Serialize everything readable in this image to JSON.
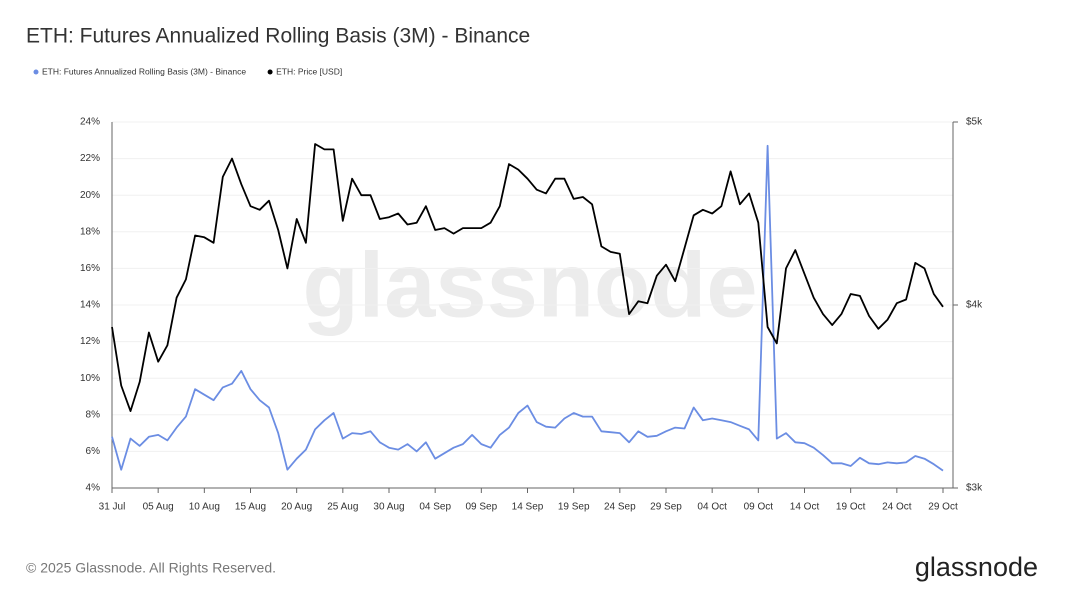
{
  "chart_data": {
    "type": "line",
    "title": "ETH: Futures Annualized Rolling Basis (3M) - Binance",
    "watermark": "glassnode",
    "categories": [
      "31 Jul",
      null,
      null,
      null,
      null,
      "05 Aug",
      null,
      null,
      null,
      null,
      "10 Aug",
      null,
      null,
      null,
      null,
      "15 Aug",
      null,
      null,
      null,
      null,
      "20 Aug",
      null,
      null,
      null,
      null,
      "25 Aug",
      null,
      null,
      null,
      null,
      "30 Aug",
      null,
      null,
      null,
      null,
      "04 Sep",
      null,
      null,
      null,
      null,
      "09 Sep",
      null,
      null,
      null,
      null,
      "14 Sep",
      null,
      null,
      null,
      null,
      "19 Sep",
      null,
      null,
      null,
      null,
      "24 Sep",
      null,
      null,
      null,
      null,
      "29 Sep",
      null,
      null,
      null,
      null,
      "04 Oct",
      null,
      null,
      null,
      null,
      "09 Oct",
      null,
      null,
      null,
      null,
      "14 Oct",
      null,
      null,
      null,
      null,
      "19 Oct",
      null,
      null,
      null,
      null,
      "24 Oct",
      null,
      null,
      null,
      null,
      "29 Oct"
    ],
    "series": [
      {
        "name": "ETH: Futures Annualized Rolling Basis (3M) - Binance",
        "color": "#6b8de3",
        "axis": "y",
        "values": [
          6.8,
          5.0,
          6.7,
          6.3,
          6.8,
          6.9,
          6.6,
          7.3,
          7.9,
          9.4,
          9.1,
          8.8,
          9.5,
          9.7,
          10.4,
          9.4,
          8.8,
          8.4,
          7.0,
          5.0,
          5.6,
          6.1,
          7.2,
          7.7,
          8.1,
          6.7,
          7.0,
          6.95,
          7.1,
          6.5,
          6.2,
          6.1,
          6.4,
          6.0,
          6.5,
          5.6,
          5.9,
          6.2,
          6.4,
          6.9,
          6.4,
          6.2,
          6.9,
          7.3,
          8.1,
          8.5,
          7.6,
          7.35,
          7.3,
          7.8,
          8.1,
          7.9,
          7.9,
          7.1,
          7.05,
          7.0,
          6.5,
          7.1,
          6.8,
          6.85,
          7.1,
          7.3,
          7.25,
          8.4,
          7.7,
          7.8,
          7.7,
          7.6,
          7.4,
          7.2,
          6.6,
          22.7,
          6.7,
          7.0,
          6.5,
          6.45,
          6.2,
          5.8,
          5.35,
          5.35,
          5.2,
          5.65,
          5.35,
          5.3,
          5.4,
          5.35,
          5.4,
          5.75,
          5.6,
          5.3,
          4.95
        ]
      },
      {
        "name": "ETH: Price [USD]",
        "color": "#000000",
        "axis": "y2",
        "values": [
          3880,
          3560,
          3420,
          3580,
          3850,
          3690,
          3780,
          4040,
          4140,
          4380,
          4370,
          4340,
          4700,
          4800,
          4660,
          4540,
          4520,
          4570,
          4410,
          4200,
          4470,
          4340,
          4880,
          4850,
          4850,
          4460,
          4690,
          4600,
          4600,
          4470,
          4480,
          4500,
          4440,
          4450,
          4540,
          4410,
          4420,
          4390,
          4420,
          4420,
          4420,
          4450,
          4540,
          4770,
          4740,
          4690,
          4630,
          4610,
          4690,
          4690,
          4580,
          4590,
          4550,
          4320,
          4290,
          4280,
          3950,
          4020,
          4010,
          4160,
          4220,
          4130,
          4310,
          4490,
          4520,
          4500,
          4540,
          4730,
          4550,
          4610,
          4450,
          3880,
          3790,
          4200,
          4300,
          4170,
          4040,
          3950,
          3890,
          3950,
          4060,
          4050,
          3940,
          3870,
          3920,
          4010,
          4030,
          4230,
          4200,
          4060,
          3990
        ]
      }
    ],
    "ylim": [
      4,
      24
    ],
    "yticks": [
      {
        "value": 4,
        "label": "4%"
      },
      {
        "value": 6,
        "label": "6%"
      },
      {
        "value": 8,
        "label": "8%"
      },
      {
        "value": 10,
        "label": "10%"
      },
      {
        "value": 12,
        "label": "12%"
      },
      {
        "value": 14,
        "label": "14%"
      },
      {
        "value": 16,
        "label": "16%"
      },
      {
        "value": 18,
        "label": "18%"
      },
      {
        "value": 20,
        "label": "20%"
      },
      {
        "value": 22,
        "label": "22%"
      },
      {
        "value": 24,
        "label": "24%"
      }
    ],
    "y2lim": [
      3000,
      5000
    ],
    "y2ticks": [
      {
        "value": 3000,
        "label": "$3k"
      },
      {
        "value": 4000,
        "label": "$4k"
      },
      {
        "value": 5000,
        "label": "$5k"
      }
    ],
    "grid": true
  },
  "footer": {
    "copyright": "© 2025 Glassnode. All Rights Reserved.",
    "logo": "glassnode"
  }
}
